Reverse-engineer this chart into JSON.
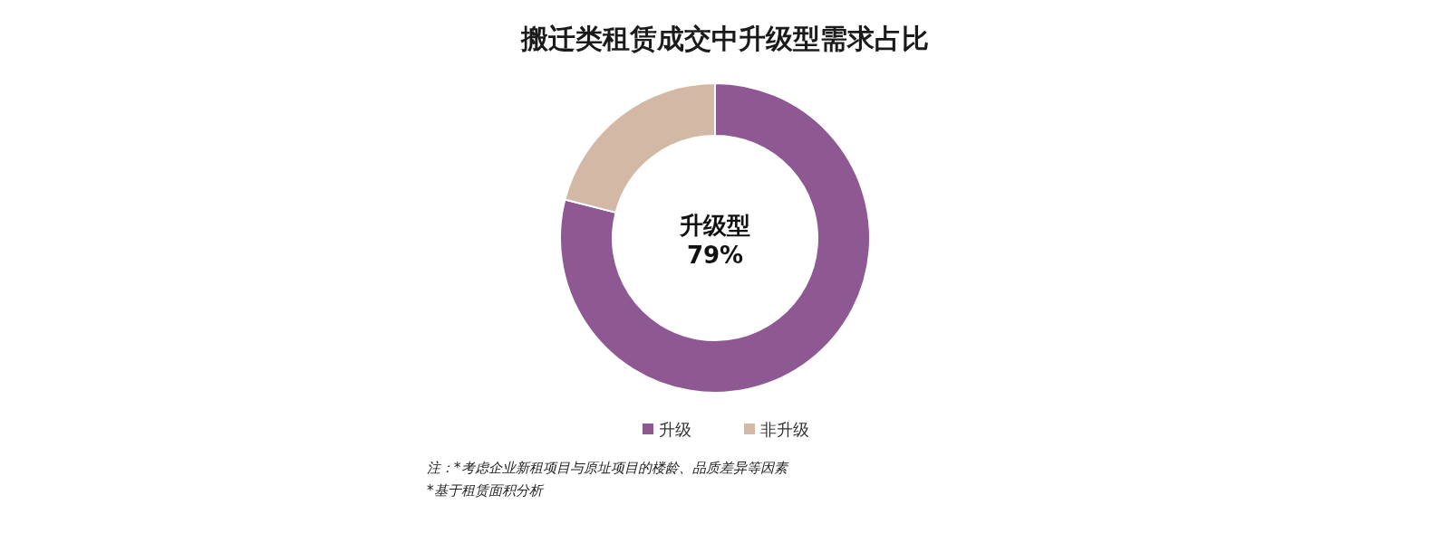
{
  "chart_data": {
    "type": "donut",
    "title": "搬迁类租赁成交中升级型需求占比",
    "categories": [
      "升级",
      "非升级"
    ],
    "values": [
      79,
      21
    ],
    "colors": [
      "#8e5893",
      "#d3b9a5"
    ],
    "legend": "bottom",
    "annotations": [
      "升级型",
      "79%",
      "注：*考虑企业新租项目与原址项目的楼龄、品质差异等因素",
      "*基于租赁面积分析"
    ]
  }
}
